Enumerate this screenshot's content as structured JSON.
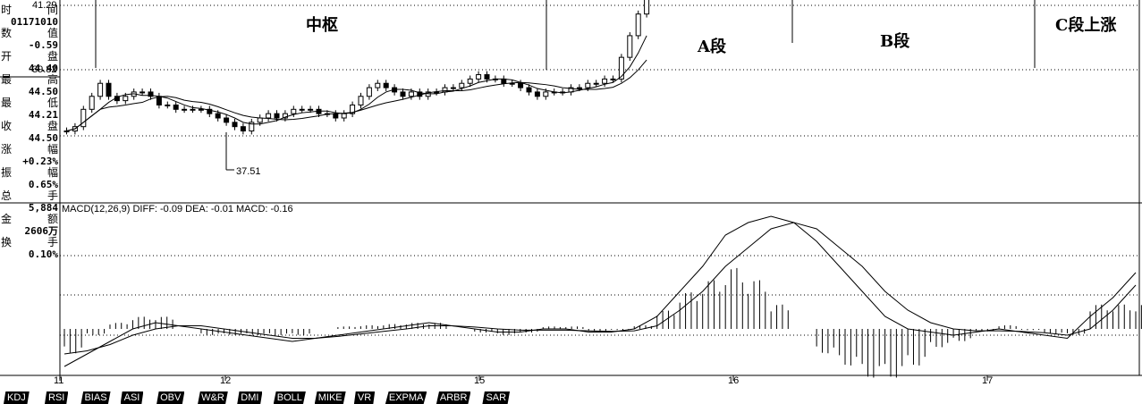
{
  "panel": {
    "rows": [
      {
        "label": "时",
        "label2": "间"
      },
      {
        "value": "01171010"
      },
      {
        "label": "数",
        "label2": "值"
      },
      {
        "value": "-0.59"
      },
      {
        "label": "开",
        "label2": "盘"
      },
      {
        "value": "44.40"
      },
      {
        "label": "最",
        "label2": "高"
      },
      {
        "value": "44.50"
      },
      {
        "label": "最",
        "label2": "低"
      },
      {
        "value": "44.21"
      },
      {
        "label": "收",
        "label2": "盘"
      },
      {
        "value": "44.50"
      },
      {
        "label": "涨",
        "label2": "幅"
      },
      {
        "value": "+0.23%"
      },
      {
        "label": "振",
        "label2": "幅"
      },
      {
        "value": "0.65%"
      },
      {
        "label": "总",
        "label2": "手"
      },
      {
        "value": "5,884"
      },
      {
        "label": "金",
        "label2": "额"
      },
      {
        "value": "2606万"
      },
      {
        "label": "换",
        "label2": "手"
      },
      {
        "value": "0.10%"
      }
    ]
  },
  "price_labels": {
    "top": "41.29",
    "mid": "39.82",
    "low_marker": "37.51"
  },
  "annotations": {
    "zhongshu": "中枢",
    "a_seg": "A段",
    "b_seg": "B段",
    "c_seg": "C段上涨"
  },
  "macd_header": "MACD(12,26,9) DIFF: -0.09 DEA: -0.01 MACD: -0.16",
  "x_labels": [
    "11",
    "12",
    "15",
    "16",
    "17"
  ],
  "tabs": [
    "KDJ",
    "RSI",
    "BIAS",
    "ASI",
    "OBV",
    "W&R",
    "DMI",
    "BOLL",
    "MIKE",
    "VR",
    "EXPMA",
    "ARBR",
    "SAR"
  ],
  "chart_data": {
    "type": "candlestick+macd",
    "price_axis": {
      "ticks": [
        41.29,
        39.82
      ],
      "low_marked": 37.51
    },
    "x_categories": [
      "11",
      "12",
      "15",
      "16",
      "17"
    ],
    "candles_close": [
      38.4,
      38.5,
      38.9,
      39.2,
      39.5,
      39.2,
      39.1,
      39.2,
      39.3,
      39.3,
      39.2,
      39.0,
      39.0,
      38.9,
      38.9,
      38.9,
      38.9,
      38.8,
      38.7,
      38.6,
      38.5,
      38.4,
      38.6,
      38.7,
      38.8,
      38.7,
      38.8,
      38.9,
      38.9,
      38.9,
      38.8,
      38.8,
      38.7,
      38.8,
      39.0,
      39.2,
      39.4,
      39.5,
      39.4,
      39.3,
      39.2,
      39.3,
      39.2,
      39.3,
      39.3,
      39.4,
      39.4,
      39.5,
      39.6,
      39.7,
      39.6,
      39.6,
      39.5,
      39.5,
      39.4,
      39.3,
      39.2,
      39.3,
      39.3,
      39.3,
      39.4,
      39.4,
      39.5,
      39.5,
      39.6,
      39.6,
      40.1,
      40.6,
      41.1,
      41.6
    ],
    "macd": {
      "diff": [
        -0.6,
        -0.4,
        -0.2,
        0.0,
        0.1,
        0.05,
        0.0,
        -0.05,
        -0.1,
        -0.15,
        -0.2,
        -0.15,
        -0.1,
        -0.05,
        0.0,
        0.05,
        0.1,
        0.05,
        0.0,
        -0.05,
        -0.05,
        0.0,
        0.0,
        -0.05,
        -0.05,
        0.0,
        0.2,
        0.6,
        1.0,
        1.5,
        1.7,
        1.8,
        1.7,
        1.4,
        1.0,
        0.6,
        0.2,
        0.0,
        -0.05,
        -0.1,
        -0.05,
        0.0,
        -0.05,
        -0.1,
        -0.15,
        0.2,
        0.5,
        0.9
      ],
      "dea": [
        -0.4,
        -0.35,
        -0.25,
        -0.1,
        0.0,
        0.05,
        0.05,
        0.0,
        -0.05,
        -0.1,
        -0.15,
        -0.15,
        -0.12,
        -0.08,
        -0.04,
        0.0,
        0.05,
        0.05,
        0.03,
        0.0,
        -0.02,
        -0.02,
        -0.02,
        -0.03,
        -0.04,
        -0.03,
        0.05,
        0.3,
        0.6,
        1.0,
        1.3,
        1.6,
        1.7,
        1.6,
        1.3,
        1.0,
        0.6,
        0.3,
        0.1,
        0.0,
        -0.03,
        -0.03,
        -0.04,
        -0.06,
        -0.1,
        0.0,
        0.3,
        0.7
      ]
    }
  }
}
